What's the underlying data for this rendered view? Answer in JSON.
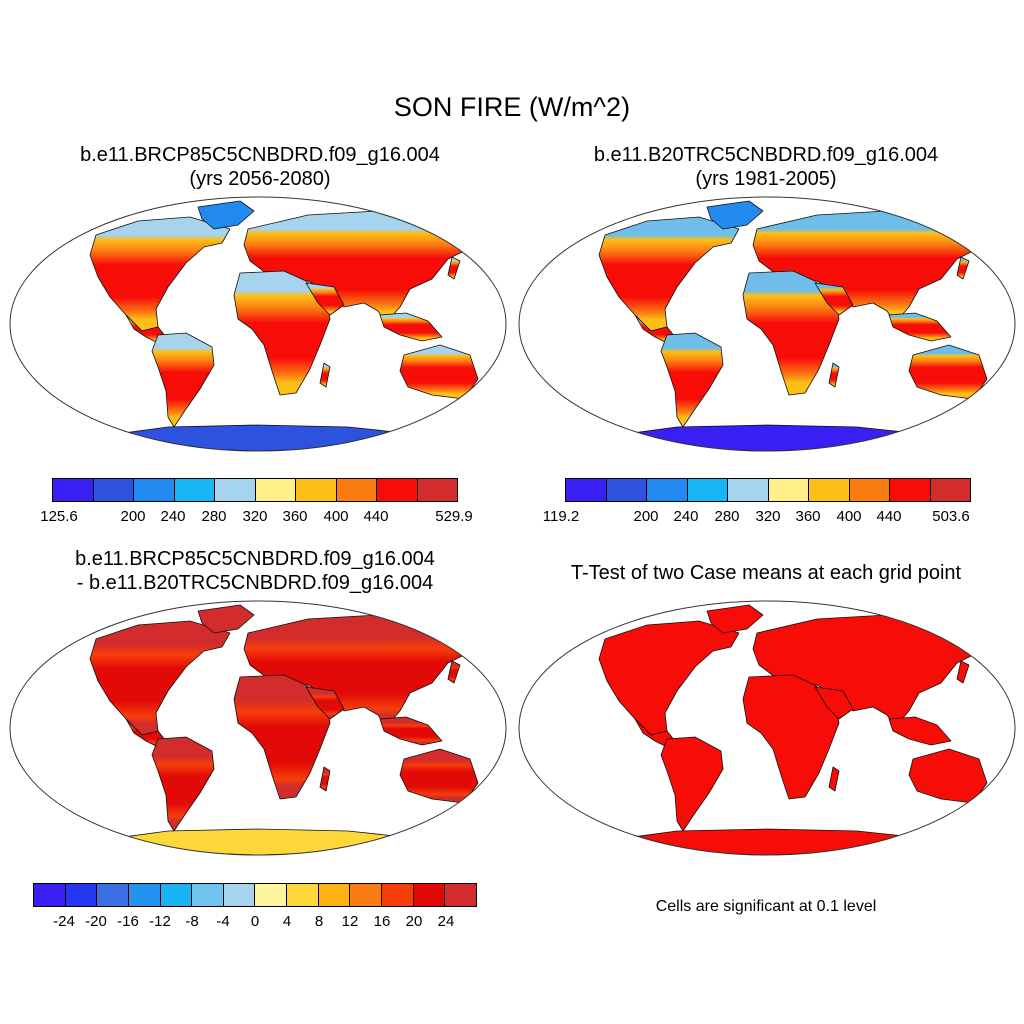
{
  "title": "SON FIRE (W/m^2)",
  "panels": {
    "future": {
      "title_line1": "b.e11.BRCP85C5CNBDRD.f09_g16.004",
      "title_line2": "(yrs 2056-2080)",
      "colorbar": {
        "min_label": "125.6",
        "max_label": "529.9",
        "labels": [
          "200",
          "240",
          "280",
          "320",
          "360",
          "400",
          "440"
        ],
        "colors": [
          "#3a1ff5",
          "#2e52e0",
          "#2189ef",
          "#18b6f2",
          "#a6d3ee",
          "#fff08a",
          "#fdbf16",
          "#fb7d12",
          "#f70c08",
          "#d32c2c"
        ]
      }
    },
    "historical": {
      "title_line1": "b.e11.B20TRC5CNBDRD.f09_g16.004",
      "title_line2": "(yrs 1981-2005)",
      "colorbar": {
        "min_label": "119.2",
        "max_label": "503.6",
        "labels": [
          "200",
          "240",
          "280",
          "320",
          "360",
          "400",
          "440"
        ],
        "colors": [
          "#3a1ff5",
          "#2e52e0",
          "#2189ef",
          "#18b6f2",
          "#a6d3ee",
          "#fff08a",
          "#fdbf16",
          "#fb7d12",
          "#f70c08",
          "#d32c2c"
        ]
      }
    },
    "difference": {
      "title_line1": "b.e11.BRCP85C5CNBDRD.f09_g16.004",
      "title_line2": "- b.e11.B20TRC5CNBDRD.f09_g16.004",
      "colorbar": {
        "labels": [
          "-24",
          "-20",
          "-16",
          "-12",
          "-8",
          "-4",
          "0",
          "4",
          "8",
          "12",
          "16",
          "20",
          "24"
        ],
        "colors": [
          "#3a1ff5",
          "#2438f2",
          "#3a6fe2",
          "#2293ef",
          "#19b2f2",
          "#6fc3ef",
          "#a6d3ee",
          "#fff59c",
          "#fdd83a",
          "#fdb214",
          "#fb7d12",
          "#f73d0a",
          "#e10a06",
          "#d32c2c"
        ]
      }
    },
    "ttest": {
      "title": "T-Test of two Case means at each grid point",
      "note": "Cells are significant at 0.1 level",
      "color": "#f70c08"
    }
  }
}
